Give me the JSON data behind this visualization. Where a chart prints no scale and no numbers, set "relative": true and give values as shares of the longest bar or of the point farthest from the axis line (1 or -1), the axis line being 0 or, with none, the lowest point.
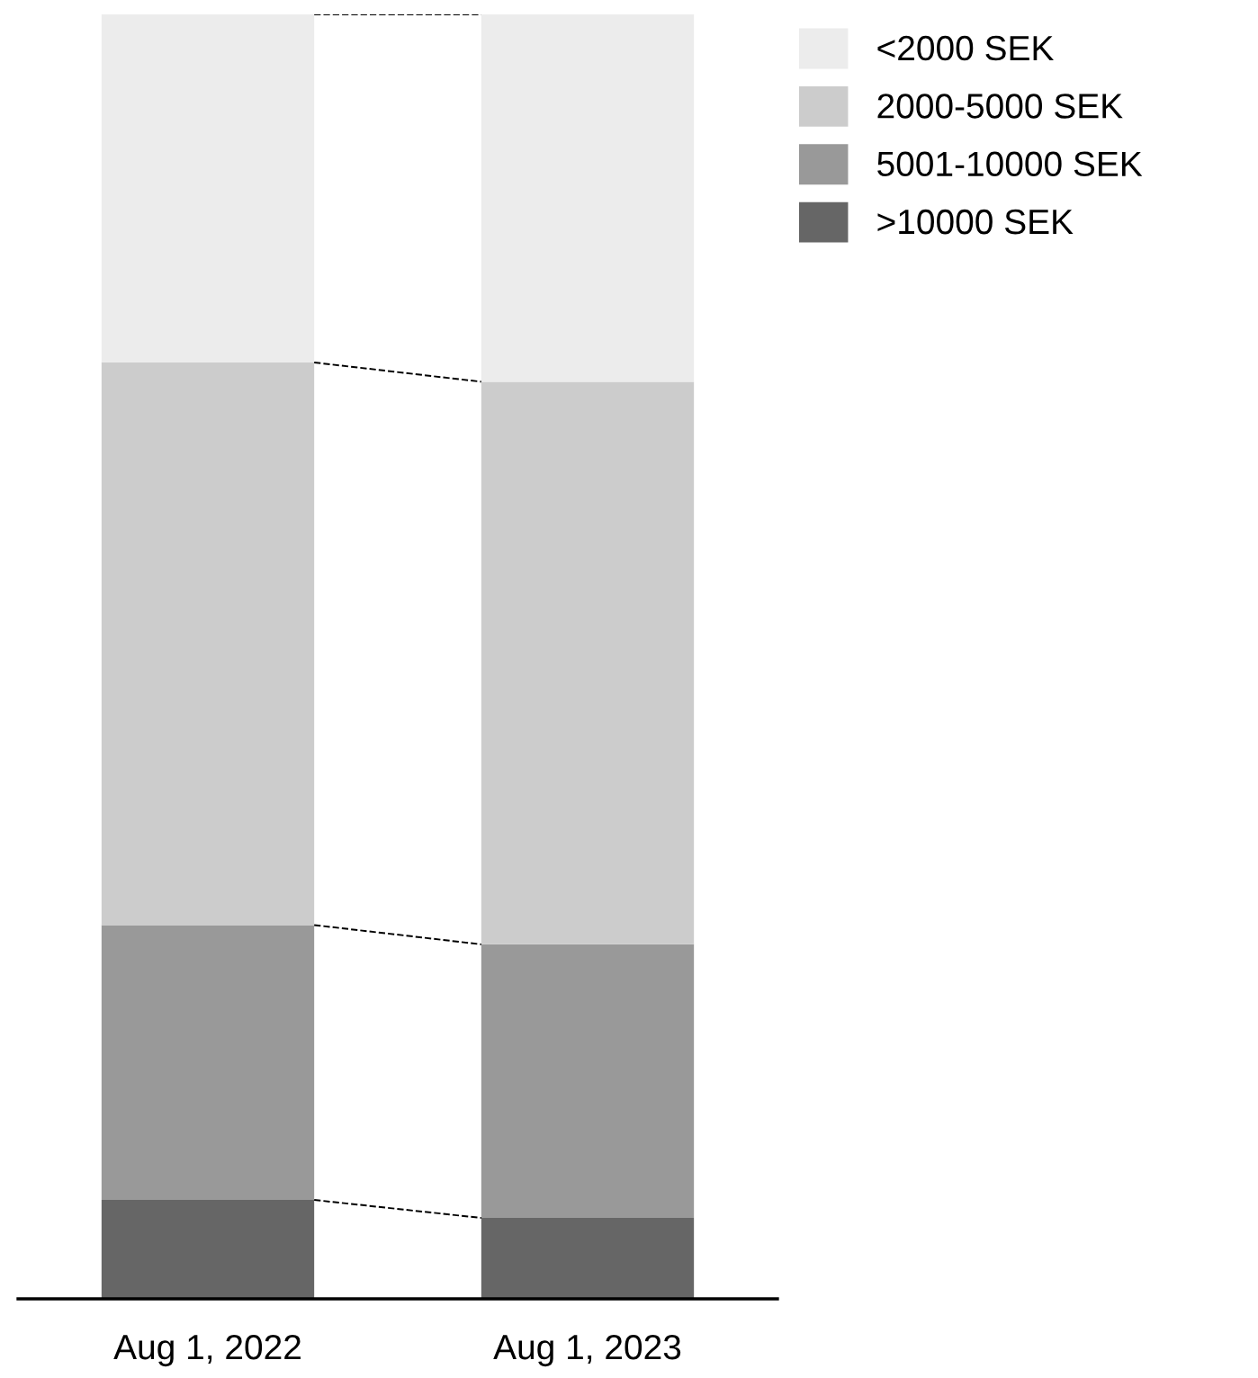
{
  "chart_data": {
    "type": "bar",
    "stacked": true,
    "relative": true,
    "legend": "top right",
    "grid": false,
    "categories": [
      "Aug 1, 2022",
      "Aug 1, 2023"
    ],
    "series": [
      {
        "name": ">10000 SEK",
        "color": "#666666",
        "values": [
          0.077,
          0.063
        ]
      },
      {
        "name": "5001-10000 SEK",
        "color": "#999999",
        "values": [
          0.214,
          0.213
        ]
      },
      {
        "name": "2000-5000 SEK",
        "color": "#cccccc",
        "values": [
          0.438,
          0.438
        ]
      },
      {
        "name": "<2000 SEK",
        "color": "#ececec",
        "values": [
          0.271,
          0.286
        ]
      }
    ]
  }
}
